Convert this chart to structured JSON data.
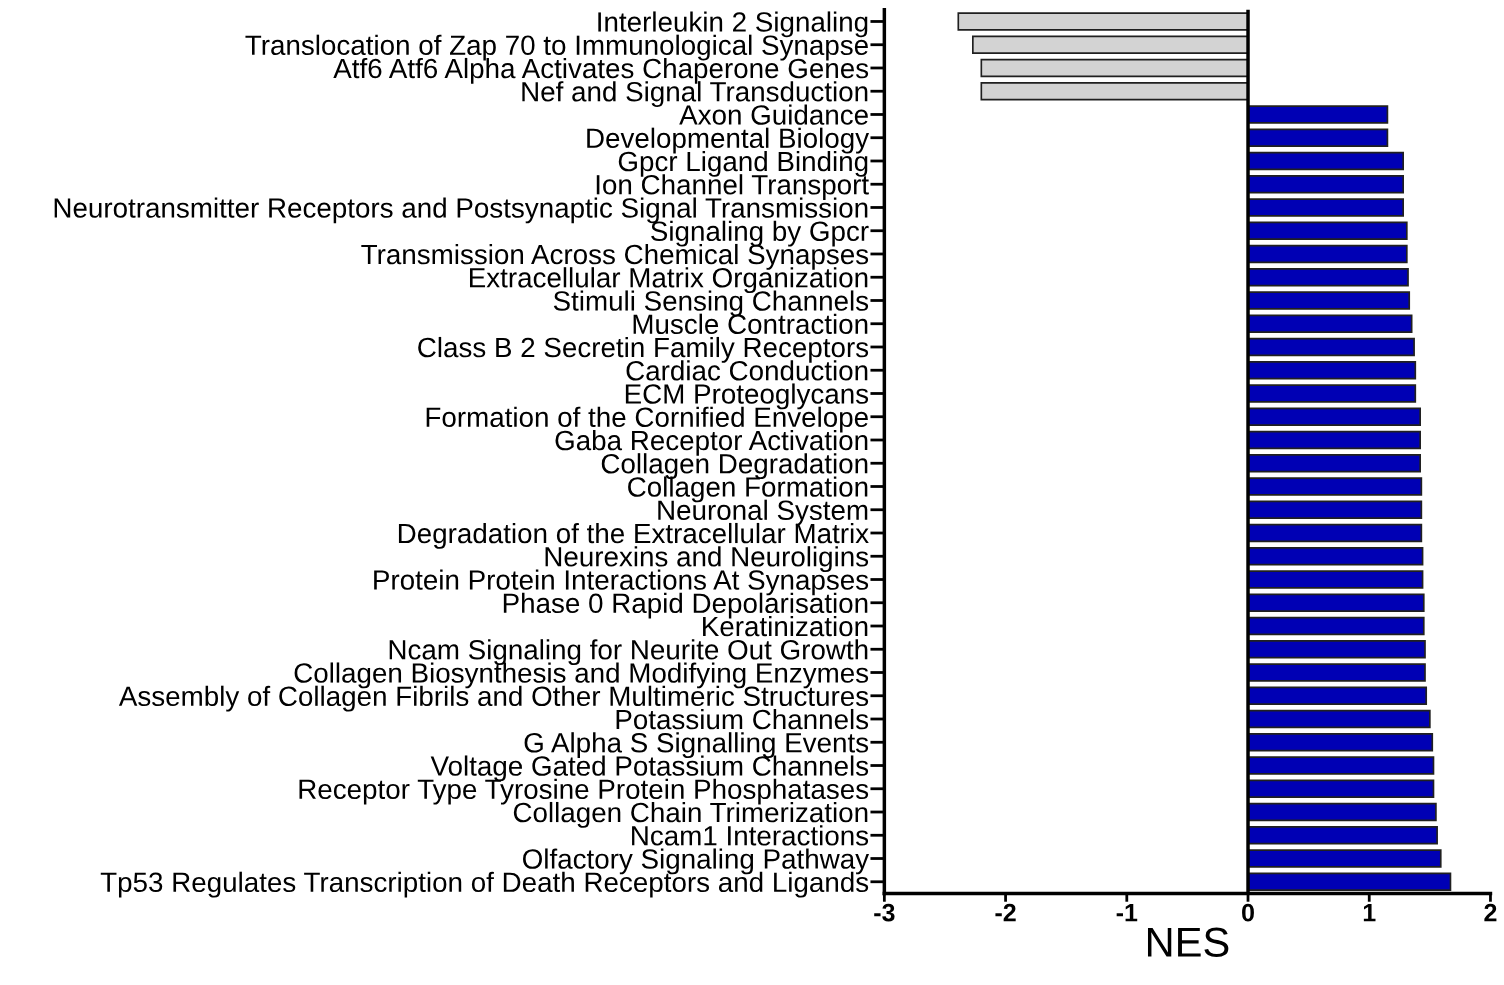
{
  "chart_data": {
    "type": "bar",
    "orientation": "horizontal",
    "xlabel": "NES",
    "categories": [
      "Interleukin 2 Signaling",
      "Translocation of Zap 70 to Immunological Synapse",
      "Atf6 Atf6 Alpha Activates Chaperone Genes",
      "Nef and Signal Transduction",
      "Axon Guidance",
      "Developmental Biology",
      "Gpcr Ligand Binding",
      "Ion Channel Transport",
      "Neurotransmitter Receptors and Postsynaptic Signal Transmission",
      "Signaling by Gpcr",
      "Transmission Across Chemical Synapses",
      "Extracellular Matrix Organization",
      "Stimuli Sensing Channels",
      "Muscle Contraction",
      "Class B 2 Secretin Family Receptors",
      "Cardiac Conduction",
      "ECM Proteoglycans",
      "Formation of the Cornified Envelope",
      "Gaba Receptor Activation",
      "Collagen Degradation",
      "Collagen Formation",
      "Neuronal System",
      "Degradation of the Extracellular Matrix",
      "Neurexins and Neuroligins",
      "Protein Protein Interactions At Synapses",
      "Phase 0 Rapid Depolarisation",
      "Keratinization",
      "Ncam Signaling for Neurite Out Growth",
      "Collagen Biosynthesis and Modifying Enzymes",
      "Assembly of Collagen Fibrils and Other Multimeric Structures",
      "Potassium Channels",
      "G Alpha S Signalling Events",
      "Voltage Gated Potassium Channels",
      "Receptor Type Tyrosine Protein Phosphatases",
      "Collagen Chain Trimerization",
      "Ncam1 Interactions",
      "Olfactory Signaling Pathway",
      "Tp53 Regulates Transcription of Death Receptors and Ligands"
    ],
    "values": [
      -2.39,
      -2.27,
      -2.2,
      -2.2,
      1.15,
      1.15,
      1.28,
      1.28,
      1.28,
      1.31,
      1.31,
      1.32,
      1.33,
      1.35,
      1.37,
      1.38,
      1.38,
      1.42,
      1.42,
      1.42,
      1.43,
      1.43,
      1.43,
      1.44,
      1.44,
      1.45,
      1.45,
      1.46,
      1.46,
      1.47,
      1.5,
      1.52,
      1.53,
      1.53,
      1.55,
      1.56,
      1.59,
      1.67
    ],
    "colors": [
      "#d3d3d3",
      "#d3d3d3",
      "#d3d3d3",
      "#d3d3d3",
      "#0000b4",
      "#0000b4",
      "#0000b4",
      "#0000b4",
      "#0000b4",
      "#0000b4",
      "#0000b4",
      "#0000b4",
      "#0000b4",
      "#0000b4",
      "#0000b4",
      "#0000b4",
      "#0000b4",
      "#0000b4",
      "#0000b4",
      "#0000b4",
      "#0000b4",
      "#0000b4",
      "#0000b4",
      "#0000b4",
      "#0000b4",
      "#0000b4",
      "#0000b4",
      "#0000b4",
      "#0000b4",
      "#0000b4",
      "#0000b4",
      "#0000b4",
      "#0000b4",
      "#0000b4",
      "#0000b4",
      "#0000b4",
      "#0000b4",
      "#0000b4"
    ],
    "xlim": [
      -3,
      2
    ],
    "xticks": [
      -3,
      -2,
      -1,
      0,
      1,
      2
    ],
    "ref_lines": [
      {
        "axis": "x",
        "value": 0,
        "color": "#000000"
      }
    ],
    "grid": false
  }
}
